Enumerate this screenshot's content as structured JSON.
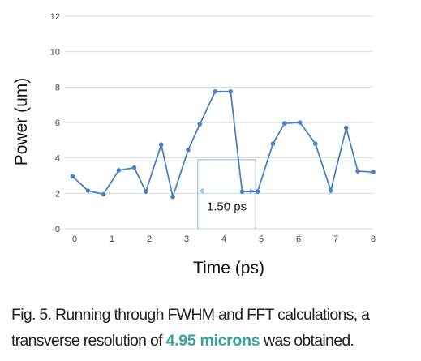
{
  "chart_data": {
    "type": "line",
    "x": [
      0.2,
      0.6,
      1.0,
      1.4,
      1.8,
      2.1,
      2.5,
      2.8,
      3.2,
      3.5,
      3.9,
      4.3,
      4.6,
      5.0,
      5.4,
      5.7,
      6.1,
      6.5,
      6.9,
      7.3,
      7.6,
      8.0
    ],
    "y": [
      2.95,
      2.15,
      1.95,
      3.3,
      3.45,
      2.1,
      4.75,
      1.8,
      4.45,
      5.9,
      7.75,
      7.75,
      2.1,
      2.1,
      4.8,
      5.95,
      6.0,
      4.8,
      2.15,
      5.7,
      3.25,
      3.2
    ],
    "xlabel": "Time (ps)",
    "ylabel": "Power (um)",
    "xlim": [
      0,
      8
    ],
    "ylim": [
      0,
      12
    ],
    "xticks": [
      "0",
      "1",
      "2",
      "3",
      "4",
      "5",
      "6",
      "7",
      "8"
    ],
    "yticks": [
      "0",
      "2",
      "4",
      "6",
      "8",
      "10",
      "12"
    ],
    "grid": "horizontal",
    "line_color": "#4a82c6",
    "annotation": {
      "text": "1.50 ps",
      "x_start": 3.45,
      "x_end": 4.95,
      "y_level": 2.0,
      "y_top": 3.9,
      "color": "#8fb9d8"
    }
  },
  "caption": {
    "fig_label": "Fig. 5.",
    "part1": " Running through ",
    "fwhm": "FWHM",
    "part2": " and ",
    "fft": "FFT",
    "part3": " calculations, a transverse resolution  of ",
    "highlight": "4.95 microns",
    "part4": " was obtained."
  }
}
